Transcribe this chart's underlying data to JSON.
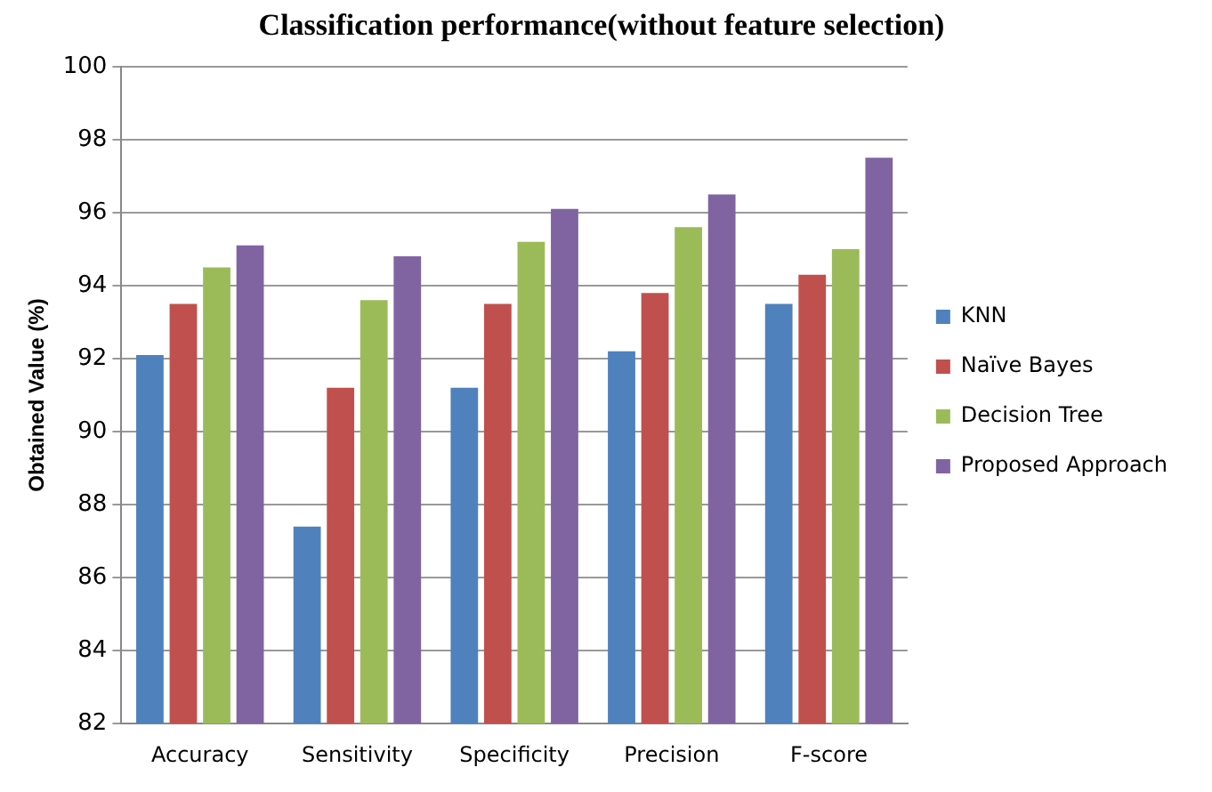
{
  "chart_data": {
    "type": "bar",
    "title": "Classification performance(without feature selection)",
    "ylabel": "Obtained Value (%)",
    "categories": [
      "Accuracy",
      "Sensitivity",
      "Specificity",
      "Precision",
      "F-score"
    ],
    "series": [
      {
        "name": "KNN",
        "color": "#4f81bd",
        "values": [
          92.1,
          87.4,
          91.2,
          92.2,
          93.5
        ]
      },
      {
        "name": "Naïve Bayes",
        "color": "#c0504d",
        "values": [
          93.5,
          91.2,
          93.5,
          93.8,
          94.3
        ]
      },
      {
        "name": "Decision Tree",
        "color": "#9bbb59",
        "values": [
          94.5,
          93.6,
          95.2,
          95.6,
          95.0
        ]
      },
      {
        "name": "Proposed Approach",
        "color": "#8064a2",
        "values": [
          95.1,
          94.8,
          96.1,
          96.5,
          97.5
        ]
      }
    ],
    "ylim": [
      82,
      100
    ],
    "yticks": [
      82,
      84,
      86,
      88,
      90,
      92,
      94,
      96,
      98,
      100
    ],
    "grid": "y",
    "legend": "right"
  }
}
